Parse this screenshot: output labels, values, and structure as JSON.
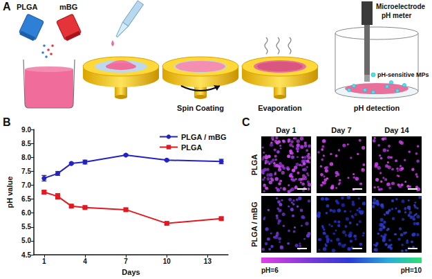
{
  "panels": {
    "A": {
      "label": "A",
      "reagents": [
        "PLGA",
        "mBG"
      ],
      "steps": [
        "Spin Coating",
        "Evaporation",
        "pH detection"
      ],
      "meter_label": [
        "Microelectrode",
        "pH meter"
      ],
      "particles_label": "pH-sensitive MPs"
    },
    "B": {
      "label": "B"
    },
    "C": {
      "label": "C",
      "columns": [
        "Day 1",
        "Day 7",
        "Day 14"
      ],
      "rows": [
        "PLGA",
        "PLGA / mBG"
      ],
      "colorbar": {
        "min_label": "pH=6",
        "max_label": "pH=10"
      }
    }
  },
  "chart_data": {
    "type": "line",
    "xlabel": "Days",
    "ylabel": "pH value",
    "x": [
      1,
      2,
      3,
      4,
      7,
      10,
      14
    ],
    "series": [
      {
        "name": "PLGA / mBG",
        "color": "#2323c2",
        "marker": "circle",
        "values": [
          7.25,
          7.42,
          7.78,
          7.83,
          8.08,
          7.9,
          7.85
        ],
        "errors": [
          0.1,
          0.07,
          0.03,
          0.07,
          0.03,
          0.03,
          0.08
        ]
      },
      {
        "name": "PLGA",
        "color": "#e3191f",
        "marker": "square",
        "values": [
          6.75,
          6.6,
          6.25,
          6.2,
          6.12,
          5.63,
          5.8
        ],
        "errors": [
          0.05,
          0.1,
          0.04,
          0.03,
          0.05,
          0.04,
          0.04
        ]
      }
    ],
    "xlim": [
      0.25,
      14.5
    ],
    "xticks": [
      1,
      4,
      7,
      10,
      13
    ],
    "ylim": [
      4.5,
      9.0
    ],
    "yticks": [
      4.5,
      {
        "value": 5,
        "label": "5.0"
      },
      5.5,
      {
        "value": 6,
        "label": "6.0"
      },
      6.5,
      {
        "value": 7,
        "label": "7.0"
      },
      7.5,
      {
        "value": 8,
        "label": "8.0"
      },
      8.5,
      {
        "value": 9,
        "label": "9.0"
      }
    ],
    "legend": "upper right",
    "grid": false
  }
}
